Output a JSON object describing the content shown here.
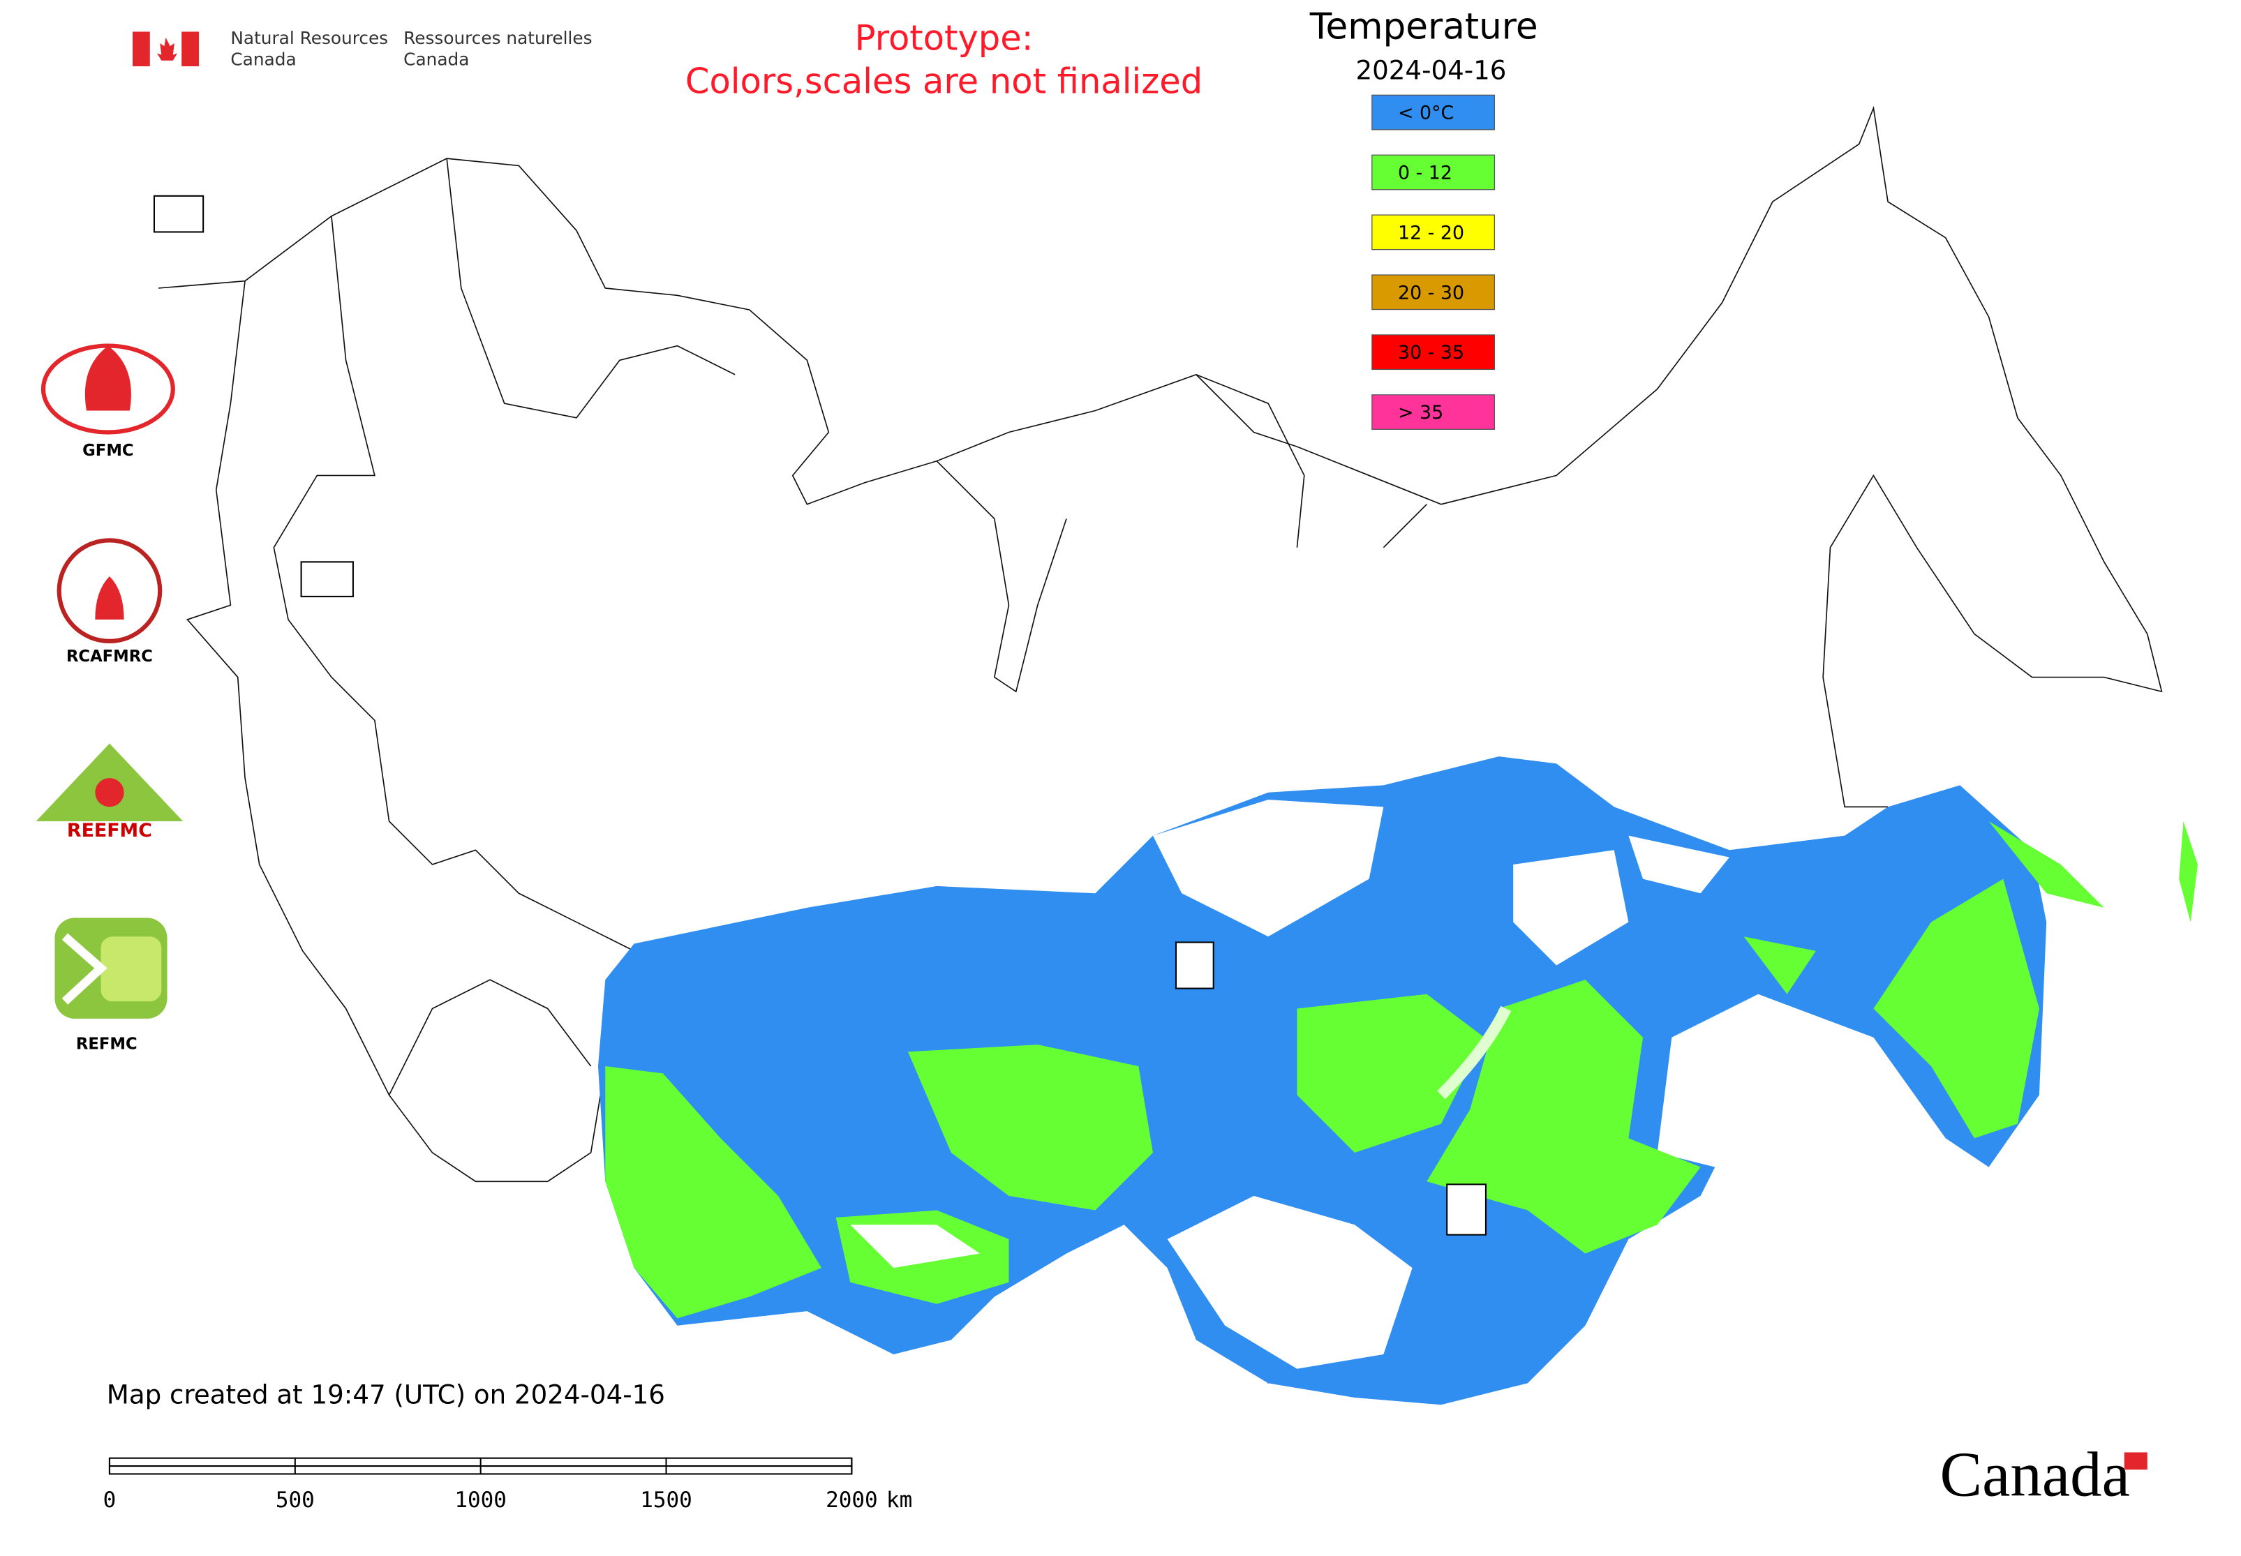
{
  "header": {
    "agency_en": [
      "Natural Resources",
      "Canada"
    ],
    "agency_fr": [
      "Ressources naturelles",
      "Canada"
    ]
  },
  "notice": [
    "Prototype:",
    "Colors,scales are not finalized"
  ],
  "legend": {
    "title": "Temperature",
    "date": "2024-04-16",
    "items": [
      {
        "label": "< 0°C",
        "color": "#2f8ef0"
      },
      {
        "label": "0 - 12",
        "color": "#66ff33"
      },
      {
        "label": "12 - 20",
        "color": "#ffff00"
      },
      {
        "label": "20 - 30",
        "color": "#d99a00"
      },
      {
        "label": "30 - 35",
        "color": "#ff0000"
      },
      {
        "label": "> 35",
        "color": "#ff3399"
      }
    ]
  },
  "logos": [
    {
      "label": "GFMC"
    },
    {
      "label": "RCAFMRC"
    },
    {
      "label": "REEFMC"
    },
    {
      "label": "REFMC"
    }
  ],
  "footer": "Map created at 19:47 (UTC) on 2024-04-16",
  "scale_bar": {
    "ticks": [
      0,
      500,
      1000,
      1500,
      2000
    ],
    "unit": "km"
  },
  "wordmark": "Canada"
}
